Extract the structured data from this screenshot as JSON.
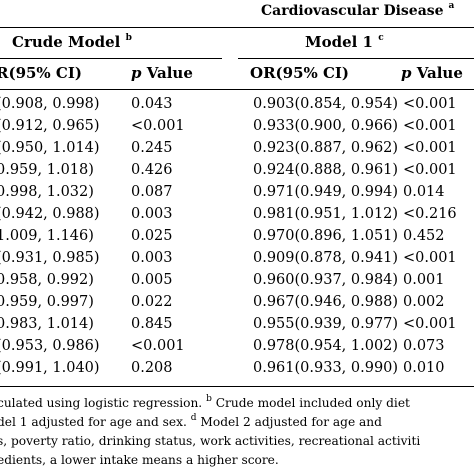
{
  "caption": {
    "text": "Cardiovascular Disease",
    "sup": "a"
  },
  "models": {
    "crude": {
      "label": "Crude Model",
      "sup": "b"
    },
    "model1": {
      "label": "Model 1",
      "sup": "c"
    }
  },
  "columns": {
    "or_ci_partial": "R(95% CI)",
    "p_letter": "p",
    "p_value_word": "Value",
    "or_ci": "OR(95% CI)"
  },
  "rows": [
    {
      "crude_ci": "(0.908, 0.998)",
      "crude_p": "0.043",
      "m1_ci": "0.903(0.854, 0.954)",
      "m1_p": "<0.001"
    },
    {
      "crude_ci": "(0.912, 0.965)",
      "crude_p": "<0.001",
      "m1_ci": "0.933(0.900, 0.966)",
      "m1_p": "<0.001"
    },
    {
      "crude_ci": "(0.950, 1.014)",
      "crude_p": "0.245",
      "m1_ci": "0.923(0.887, 0.962)",
      "m1_p": "<0.001"
    },
    {
      "crude_ci": "0.959, 1.018)",
      "crude_p": "0.426",
      "m1_ci": "0.924(0.888, 0.961)",
      "m1_p": "<0.001"
    },
    {
      "crude_ci": "0.998, 1.032)",
      "crude_p": "0.087",
      "m1_ci": "0.971(0.949, 0.994)",
      "m1_p": "0.014"
    },
    {
      "crude_ci": "(0.942, 0.988)",
      "crude_p": "0.003",
      "m1_ci": "0.981(0.951, 1.012)",
      "m1_p": "<0.216"
    },
    {
      "crude_ci": "1.009, 1.146)",
      "crude_p": "0.025",
      "m1_ci": "0.970(0.896, 1.051)",
      "m1_p": "0.452"
    },
    {
      "crude_ci": "(0.931, 0.985)",
      "crude_p": "0.003",
      "m1_ci": "0.909(0.878, 0.941)",
      "m1_p": "<0.001"
    },
    {
      "crude_ci": "0.958, 0.992)",
      "crude_p": "0.005",
      "m1_ci": "0.960(0.937, 0.984)",
      "m1_p": "0.001"
    },
    {
      "crude_ci": "0.959, 0.997)",
      "crude_p": "0.022",
      "m1_ci": "0.967(0.946, 0.988)",
      "m1_p": "0.002"
    },
    {
      "crude_ci": "0.983, 1.014)",
      "crude_p": "0.845",
      "m1_ci": "0.955(0.939, 0.977)",
      "m1_p": "<0.001"
    },
    {
      "crude_ci": "(0.953, 0.986)",
      "crude_p": "<0.001",
      "m1_ci": "0.978(0.954, 1.002)",
      "m1_p": "0.073"
    },
    {
      "crude_ci": "(0.991, 1.040)",
      "crude_p": "0.208",
      "m1_ci": "0.961(0.933, 0.990)",
      "m1_p": "0.010"
    }
  ],
  "footnotes": {
    "line1": {
      "text_a": "culated using logistic regression.",
      "sup_b": "b",
      "text_b": "Crude model included only diet"
    },
    "line2": {
      "text_a": "del 1 adjusted for age and sex.",
      "sup_d": "d",
      "text_b": "Model 2 adjusted for age and"
    },
    "line3": {
      "text": "s, poverty ratio, drinking status, work activities, recreational activiti"
    },
    "line4": {
      "text": "edients, a lower intake means a higher score."
    }
  }
}
